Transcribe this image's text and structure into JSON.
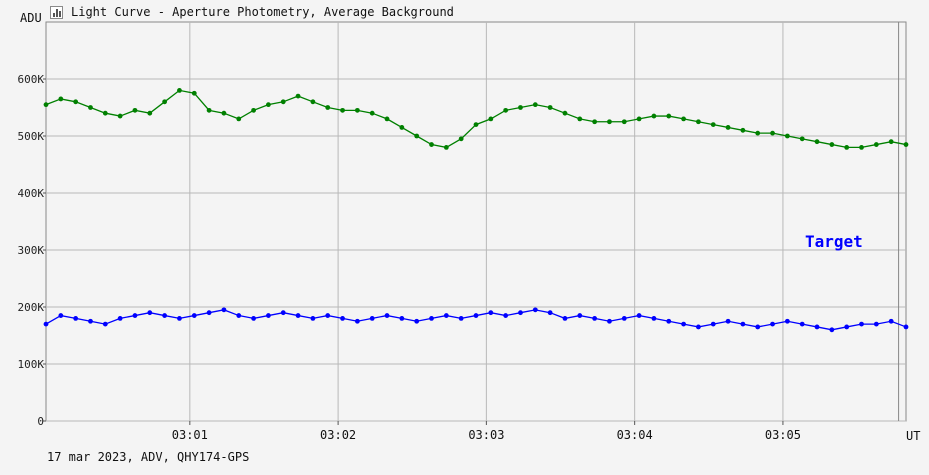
{
  "window": {
    "title": "Light Curve - Aperture Photometry, Average Background",
    "footer": "17 mar 2023, ADV, QHY174-GPS"
  },
  "chart_data": {
    "type": "line",
    "ylabel": "ADU",
    "xlabel": "UT",
    "ylim": [
      0,
      700000
    ],
    "xlim": [
      0,
      5.8
    ],
    "yticks": [
      {
        "value": 0,
        "label": "0"
      },
      {
        "value": 100000,
        "label": "100K"
      },
      {
        "value": 200000,
        "label": "200K"
      },
      {
        "value": 300000,
        "label": "300K"
      },
      {
        "value": 400000,
        "label": "400K"
      },
      {
        "value": 500000,
        "label": "500K"
      },
      {
        "value": 600000,
        "label": "600K"
      }
    ],
    "xticks": [
      {
        "value": 0.97,
        "label": "03:01"
      },
      {
        "value": 1.97,
        "label": "03:02"
      },
      {
        "value": 2.97,
        "label": "03:03"
      },
      {
        "value": 3.97,
        "label": "03:04"
      },
      {
        "value": 4.97,
        "label": "03:05"
      }
    ],
    "extra_gridline_x": 5.75,
    "grid": true,
    "annotations": [
      {
        "text": "Target",
        "series": 1
      }
    ],
    "series": [
      {
        "name": "",
        "color": "#008000",
        "x": [
          0.0,
          0.1,
          0.2,
          0.3,
          0.4,
          0.5,
          0.6,
          0.7,
          0.8,
          0.9,
          1.0,
          1.1,
          1.2,
          1.3,
          1.4,
          1.5,
          1.6,
          1.7,
          1.8,
          1.9,
          2.0,
          2.1,
          2.2,
          2.3,
          2.4,
          2.5,
          2.6,
          2.7,
          2.8,
          2.9,
          3.0,
          3.1,
          3.2,
          3.3,
          3.4,
          3.5,
          3.6,
          3.7,
          3.8,
          3.9,
          4.0,
          4.1,
          4.2,
          4.3,
          4.4,
          4.5,
          4.6,
          4.7,
          4.8,
          4.9,
          5.0,
          5.1,
          5.2,
          5.3,
          5.4,
          5.5,
          5.6,
          5.7,
          5.8
        ],
        "values": [
          555000,
          565000,
          560000,
          550000,
          540000,
          535000,
          545000,
          540000,
          560000,
          580000,
          575000,
          545000,
          540000,
          530000,
          545000,
          555000,
          560000,
          570000,
          560000,
          550000,
          545000,
          545000,
          540000,
          530000,
          515000,
          500000,
          485000,
          480000,
          495000,
          520000,
          530000,
          545000,
          550000,
          555000,
          550000,
          540000,
          530000,
          525000,
          525000,
          525000,
          530000,
          535000,
          535000,
          530000,
          525000,
          520000,
          515000,
          510000,
          505000,
          505000,
          500000,
          495000,
          490000,
          485000,
          480000,
          480000,
          485000,
          490000,
          485000
        ]
      },
      {
        "name": "",
        "color": "#0000ff",
        "x": [
          0.0,
          0.1,
          0.2,
          0.3,
          0.4,
          0.5,
          0.6,
          0.7,
          0.8,
          0.9,
          1.0,
          1.1,
          1.2,
          1.3,
          1.4,
          1.5,
          1.6,
          1.7,
          1.8,
          1.9,
          2.0,
          2.1,
          2.2,
          2.3,
          2.4,
          2.5,
          2.6,
          2.7,
          2.8,
          2.9,
          3.0,
          3.1,
          3.2,
          3.3,
          3.4,
          3.5,
          3.6,
          3.7,
          3.8,
          3.9,
          4.0,
          4.1,
          4.2,
          4.3,
          4.4,
          4.5,
          4.6,
          4.7,
          4.8,
          4.9,
          5.0,
          5.1,
          5.2,
          5.3,
          5.4,
          5.5,
          5.6,
          5.7,
          5.8
        ],
        "values": [
          170000,
          185000,
          180000,
          175000,
          170000,
          180000,
          185000,
          190000,
          185000,
          180000,
          185000,
          190000,
          195000,
          185000,
          180000,
          185000,
          190000,
          185000,
          180000,
          185000,
          180000,
          175000,
          180000,
          185000,
          180000,
          175000,
          180000,
          185000,
          180000,
          185000,
          190000,
          185000,
          190000,
          195000,
          190000,
          180000,
          185000,
          180000,
          175000,
          180000,
          185000,
          180000,
          175000,
          170000,
          165000,
          170000,
          175000,
          170000,
          165000,
          170000,
          175000,
          170000,
          165000,
          160000,
          165000,
          170000,
          170000,
          175000,
          165000
        ]
      }
    ]
  }
}
